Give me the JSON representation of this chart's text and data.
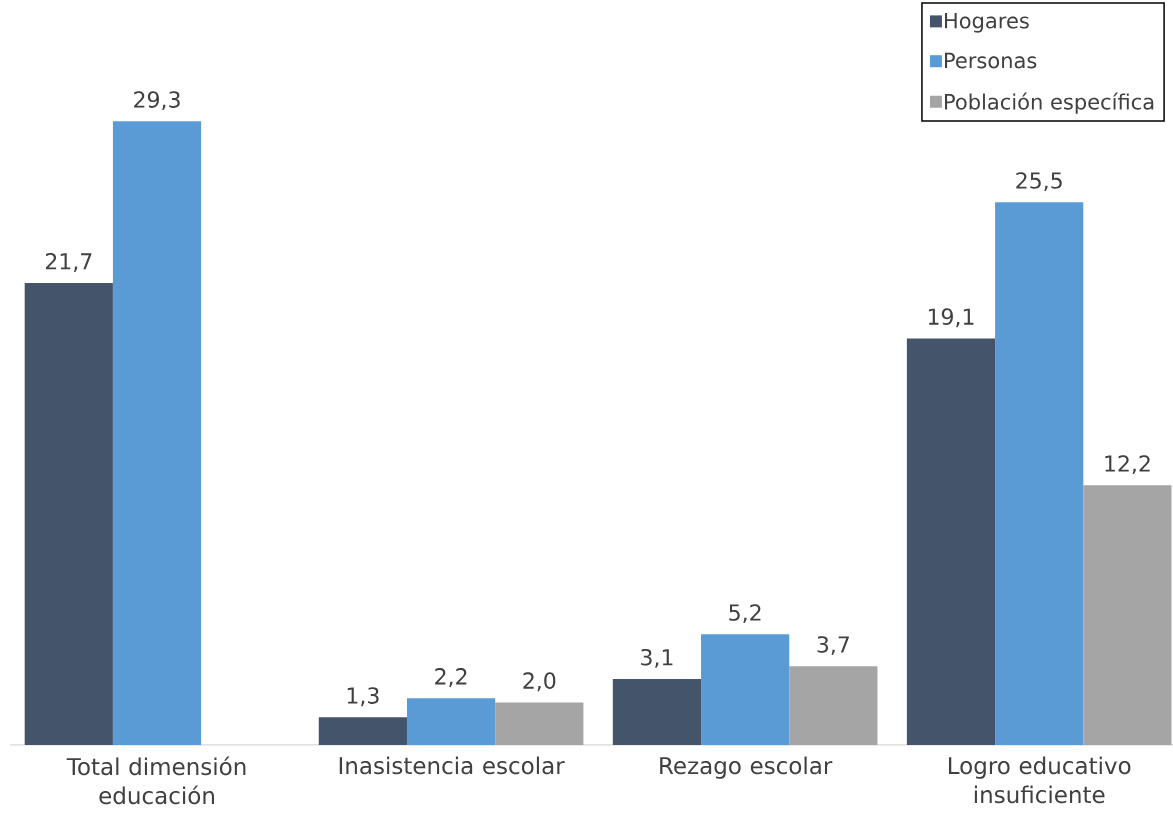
{
  "chart_data": {
    "type": "bar",
    "categories": [
      "Total dimensión educación",
      "Inasistencia escolar",
      "Rezago escolar",
      "Logro educativo insuficiente"
    ],
    "series": [
      {
        "name": "Hogares",
        "color": "#44546a",
        "values": [
          21.7,
          1.3,
          3.1,
          19.1
        ],
        "value_labels": [
          "21,7",
          "1,3",
          "3,1",
          "19,1"
        ]
      },
      {
        "name": "Personas",
        "color": "#5b9bd5",
        "values": [
          29.3,
          2.2,
          5.2,
          25.5
        ],
        "value_labels": [
          "29,3",
          "2,2",
          "5,2",
          "25,5"
        ]
      },
      {
        "name": "Población específica",
        "color": "#a5a5a5",
        "values": [
          null,
          2.0,
          3.7,
          12.2
        ],
        "value_labels": [
          null,
          "2,0",
          "3,7",
          "12,2"
        ]
      }
    ],
    "ylim": [
      0,
      35
    ],
    "tick_labels": "x",
    "legend": "top right"
  }
}
